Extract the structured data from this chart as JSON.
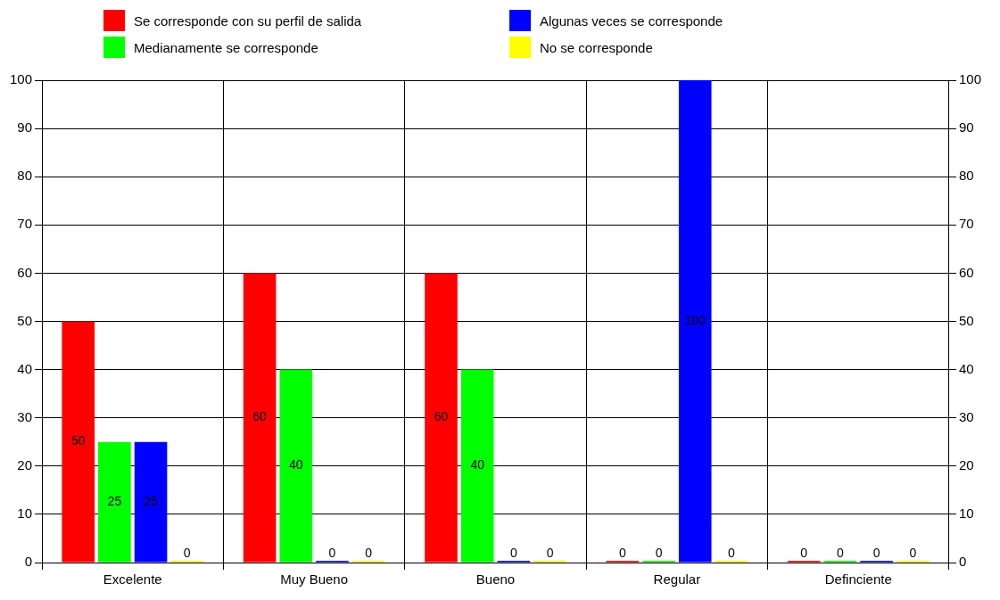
{
  "chart_data": {
    "type": "bar",
    "categories": [
      "Excelente",
      "Muy Bueno",
      "Bueno",
      "Regular",
      "Definciente"
    ],
    "series": [
      {
        "name": "Se corresponde con su perfil de salida",
        "color": "#ff0000",
        "values": [
          50,
          60,
          60,
          0,
          0
        ]
      },
      {
        "name": "Medianamente se corresponde",
        "color": "#00ff00",
        "values": [
          25,
          40,
          40,
          0,
          0
        ]
      },
      {
        "name": "Algunas veces se corresponde",
        "color": "#0000ff",
        "values": [
          25,
          0,
          0,
          100,
          0
        ]
      },
      {
        "name": "No se corresponde",
        "color": "#ffff00",
        "values": [
          0,
          0,
          0,
          0,
          0
        ]
      }
    ],
    "ylim": [
      0,
      100
    ],
    "yticks": [
      0,
      10,
      20,
      30,
      40,
      50,
      60,
      70,
      80,
      90,
      100
    ],
    "y2lim": [
      0,
      100
    ],
    "y2ticks": [
      0,
      10,
      20,
      30,
      40,
      50,
      60,
      70,
      80,
      90,
      100
    ],
    "grid": true,
    "legend": "top",
    "data_labels": true
  }
}
